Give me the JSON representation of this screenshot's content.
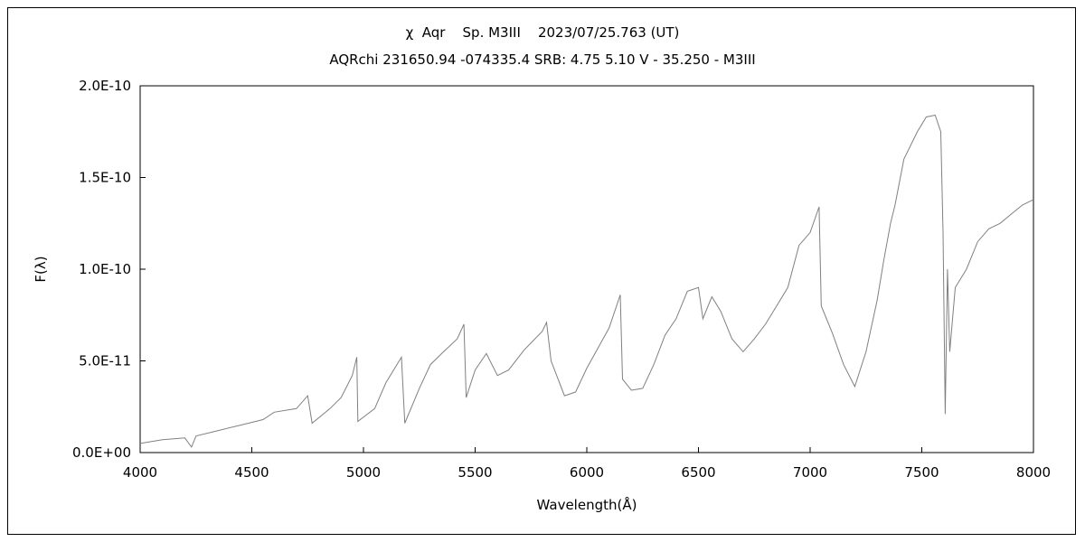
{
  "chart_data": {
    "type": "line",
    "title": "χ  Aqr    Sp. M3III    2023/07/25.763 (UT)",
    "subtitle": "AQRchi 231650.94 -074335.4 SRB: 4.75 5.10 V - 35.250 - M3III",
    "xlabel": "Wavelength(Å)",
    "ylabel": "F(λ)",
    "xlim": [
      4000,
      8000
    ],
    "ylim": [
      0,
      2e-10
    ],
    "x_ticks": [
      4000,
      4500,
      5000,
      5500,
      6000,
      6500,
      7000,
      7500,
      8000
    ],
    "x_tick_labels": [
      "4000",
      "4500",
      "5000",
      "5500",
      "6000",
      "6500",
      "7000",
      "7500",
      "8000"
    ],
    "y_ticks": [
      0,
      5e-11,
      1e-10,
      1.5e-10,
      2e-10
    ],
    "y_tick_labels": [
      "0.0E+00",
      "5.0E-11",
      "1.0E-10",
      "1.5E-10",
      "2.0E-10"
    ],
    "grid": false,
    "line_color": "#808080",
    "series": [
      {
        "x": [
          4000,
          4100,
          4200,
          4230,
          4250,
          4350,
          4450,
          4550,
          4600,
          4700,
          4750,
          4770,
          4850,
          4900,
          4950,
          4970,
          4975,
          5050,
          5100,
          5170,
          5185,
          5250,
          5300,
          5350,
          5420,
          5450,
          5460,
          5500,
          5550,
          5600,
          5650,
          5720,
          5800,
          5820,
          5840,
          5900,
          5950,
          6000,
          6100,
          6150,
          6160,
          6200,
          6250,
          6300,
          6350,
          6400,
          6450,
          6500,
          6520,
          6560,
          6600,
          6650,
          6700,
          6750,
          6800,
          6850,
          6900,
          6950,
          7000,
          7040,
          7050,
          7100,
          7150,
          7200,
          7250,
          7300,
          7330,
          7360,
          7380,
          7420,
          7480,
          7520,
          7560,
          7585,
          7595,
          7605,
          7615,
          7625,
          7650,
          7700,
          7750,
          7800,
          7850,
          7900,
          7950,
          8000
        ],
        "y": [
          5e-12,
          7e-12,
          8e-12,
          3e-12,
          9e-12,
          1.2e-11,
          1.5e-11,
          1.8e-11,
          2.2e-11,
          2.4e-11,
          3.1e-11,
          1.6e-11,
          2.4e-11,
          3e-11,
          4.2e-11,
          5.2e-11,
          1.7e-11,
          2.4e-11,
          3.8e-11,
          5.2e-11,
          1.6e-11,
          3.5e-11,
          4.8e-11,
          5.4e-11,
          6.2e-11,
          7e-11,
          3e-11,
          4.5e-11,
          5.4e-11,
          4.2e-11,
          4.5e-11,
          5.6e-11,
          6.6e-11,
          7.1e-11,
          5e-11,
          3.1e-11,
          3.3e-11,
          4.6e-11,
          6.8e-11,
          8.6e-11,
          4e-11,
          3.4e-11,
          3.5e-11,
          4.8e-11,
          6.4e-11,
          7.3e-11,
          8.8e-11,
          9e-11,
          7.3e-11,
          8.5e-11,
          7.7e-11,
          6.2e-11,
          5.5e-11,
          6.2e-11,
          7e-11,
          8e-11,
          9e-11,
          1.13e-10,
          1.2e-10,
          1.34e-10,
          8e-11,
          6.5e-11,
          4.8e-11,
          3.6e-11,
          5.5e-11,
          8.3e-11,
          1.05e-10,
          1.25e-10,
          1.35e-10,
          1.6e-10,
          1.75e-10,
          1.83e-10,
          1.84e-10,
          1.75e-10,
          1.2e-10,
          2.1e-11,
          1e-10,
          5.5e-11,
          9e-11,
          1e-10,
          1.15e-10,
          1.22e-10,
          1.25e-10,
          1.3e-10,
          1.35e-10,
          1.38e-10
        ]
      }
    ]
  }
}
